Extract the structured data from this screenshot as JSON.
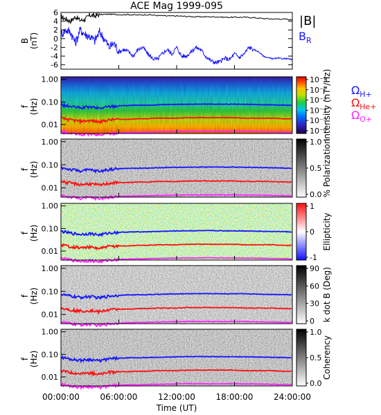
{
  "figure_title": "ACE Mag 1999-095",
  "colors": {
    "blue": "#1515ff",
    "red": "#ff1010",
    "magenta": "#ff20ff",
    "black": "#000000"
  },
  "chart_data": [
    {
      "type": "line",
      "ylabel": "B\n(nT)",
      "ylim": [
        -7,
        6
      ],
      "yticks": [
        "6",
        "4",
        "2",
        "0",
        "-2",
        "-4",
        "-6"
      ],
      "xlim": [
        0,
        24
      ],
      "legend": [
        {
          "name": "|B|",
          "color": "#000000"
        },
        {
          "name": "B_R",
          "color": "#1515ff"
        }
      ],
      "series": [
        {
          "name": "|B|",
          "x": [
            0,
            0.5,
            1,
            1.5,
            2,
            2.5,
            3,
            3.5,
            4,
            5,
            6,
            7,
            8,
            9,
            10,
            11,
            12,
            13,
            14,
            15,
            16,
            17,
            18,
            19,
            20,
            21,
            22,
            23,
            24
          ],
          "values": [
            5.0,
            4.5,
            4.0,
            5.0,
            4.2,
            4.4,
            5.4,
            5.2,
            5.5,
            5.6,
            5.5,
            5.5,
            5.4,
            5.5,
            5.3,
            5.2,
            5.2,
            5.1,
            5.0,
            5.0,
            5.0,
            4.9,
            4.9,
            4.9,
            4.8,
            4.6,
            4.5,
            4.5,
            4.3
          ]
        },
        {
          "name": "B_R",
          "x": [
            0,
            0.5,
            1,
            1.5,
            2,
            2.5,
            3,
            3.5,
            4,
            4.5,
            5,
            5.5,
            6,
            6.5,
            7,
            7.5,
            8,
            8.5,
            9,
            9.5,
            10,
            10.5,
            11,
            11.5,
            12,
            12.5,
            13,
            13.5,
            14,
            14.5,
            15,
            15.5,
            16,
            16.5,
            17,
            17.5,
            18,
            18.5,
            19,
            19.5,
            20,
            20.5,
            21,
            21.5,
            22,
            22.5,
            23,
            23.5,
            24
          ],
          "values": [
            1.0,
            2.0,
            1.5,
            -1.0,
            2.0,
            1.0,
            0.5,
            -0.5,
            1.5,
            0.0,
            -2.0,
            -1.0,
            -3.0,
            -2.5,
            -3.0,
            -4.0,
            -2.5,
            -2.0,
            -3.5,
            -4.5,
            -4.8,
            -3.5,
            -2.5,
            -3.5,
            -2.0,
            -4.0,
            -4.0,
            -3.0,
            -2.0,
            -2.5,
            -4.0,
            -5.0,
            -5.5,
            -5.3,
            -4.5,
            -4.8,
            -3.5,
            -4.3,
            -3.5,
            -2.0,
            -2.5,
            -3.0,
            -4.0,
            -4.4,
            -4.6,
            -4.5,
            -4.6,
            -4.6,
            -4.8
          ]
        }
      ]
    },
    {
      "type": "heatmap",
      "ylabel": "f\n(Hz)",
      "yticks": [
        "1.00",
        "0.10",
        "0.01"
      ],
      "colorbar": {
        "type": "rainbow",
        "label": "Intensity (nT²/Hz)",
        "ticks": [
          "10⁻¹",
          "10⁻²",
          "10⁻³",
          "10⁻⁴",
          "10⁻⁵",
          "10⁻⁶"
        ]
      },
      "legend": [
        {
          "name": "Ω_H+",
          "color": "#1515ff"
        },
        {
          "name": "Ω_He+",
          "color": "#ff1010"
        },
        {
          "name": "Ω_O+",
          "color": "#ff20ff"
        }
      ]
    },
    {
      "type": "heatmap",
      "ylabel": "f\n(Hz)",
      "yticks": [
        "1.00",
        "0.10",
        "0.01"
      ],
      "colorbar": {
        "type": "gray",
        "label": "% Polarization",
        "ticks": [
          "1.0",
          "0.5",
          "0.0"
        ]
      }
    },
    {
      "type": "heatmap",
      "ylabel": "f\n(Hz)",
      "yticks": [
        "1.00",
        "0.10",
        "0.01"
      ],
      "colorbar": {
        "type": "bwr",
        "label": "Ellipticity",
        "ticks": [
          "1",
          "0",
          "-1"
        ]
      }
    },
    {
      "type": "heatmap",
      "ylabel": "f\n(Hz)",
      "yticks": [
        "1.00",
        "0.10",
        "0.01"
      ],
      "colorbar": {
        "type": "gray",
        "label": "k dot B (Deg)",
        "ticks": [
          "90",
          "60",
          "30",
          "0"
        ]
      }
    },
    {
      "type": "heatmap",
      "ylabel": "f\n(Hz)",
      "yticks": [
        "1.00",
        "0.10",
        "0.01"
      ],
      "colorbar": {
        "type": "gray",
        "label": "Coherency",
        "ticks": [
          "1.0",
          "0.5",
          "0.0"
        ]
      }
    }
  ],
  "gyro_lines": {
    "x": [
      0,
      1,
      2,
      3,
      4,
      5,
      6,
      7,
      8,
      9,
      10,
      11,
      12,
      13,
      14,
      15,
      16,
      17,
      18,
      19,
      20,
      21,
      22,
      23,
      24
    ],
    "H+": [
      0.075,
      0.062,
      0.055,
      0.06,
      0.052,
      0.063,
      0.068,
      0.07,
      0.071,
      0.072,
      0.074,
      0.076,
      0.078,
      0.079,
      0.08,
      0.08,
      0.08,
      0.079,
      0.079,
      0.078,
      0.077,
      0.075,
      0.074,
      0.073,
      0.07
    ],
    "He+": [
      0.019,
      0.016,
      0.014,
      0.015,
      0.013,
      0.016,
      0.017,
      0.017,
      0.018,
      0.018,
      0.019,
      0.019,
      0.019,
      0.02,
      0.02,
      0.02,
      0.02,
      0.02,
      0.02,
      0.019,
      0.019,
      0.019,
      0.019,
      0.018,
      0.018
    ],
    "O+": [
      0.0048,
      0.004,
      0.0036,
      0.0038,
      0.0034,
      0.004,
      0.0043,
      0.0044,
      0.0045,
      0.0046,
      0.0047,
      0.0048,
      0.0049,
      0.005,
      0.005,
      0.005,
      0.005,
      0.005,
      0.005,
      0.0049,
      0.0049,
      0.0048,
      0.0047,
      0.0046,
      0.0045
    ]
  },
  "xaxis": {
    "ticks": [
      "00:00:00",
      "06:00:00",
      "12:00:00",
      "18:00:00",
      "24:00:00"
    ],
    "label": "Time (UT)"
  }
}
